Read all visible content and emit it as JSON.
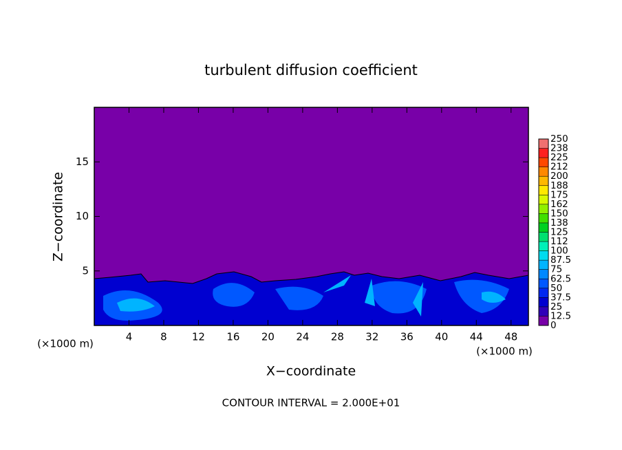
{
  "chart_data": {
    "type": "contour",
    "title": "turbulent diffusion coefficient",
    "x_label": "X−coordinate",
    "y_label": "Z−coordinate",
    "x_unit_left": "(×1000 m)",
    "x_unit_right": "(×1000 m)",
    "footnote": "CONTOUR INTERVAL = 2.000E+01",
    "xlim": [
      0,
      50
    ],
    "xticks": [
      4,
      8,
      12,
      16,
      20,
      24,
      28,
      32,
      36,
      40,
      44,
      48
    ],
    "ylim": [
      0,
      20
    ],
    "yticks": [
      5,
      10,
      15
    ],
    "colorbar": {
      "ticks": [
        0,
        12.5,
        25,
        37.5,
        50,
        62.5,
        75,
        87.5,
        100,
        {
          "value": 112.5,
          "label": "112"
        },
        125,
        {
          "value": 137.5,
          "label": "138"
        },
        150,
        {
          "value": 162.5,
          "label": "162"
        },
        175,
        {
          "value": 187.5,
          "label": "188"
        },
        200,
        {
          "value": 212.5,
          "label": "212"
        },
        225,
        {
          "value": 237.5,
          "label": "238"
        },
        250
      ],
      "colors": [
        "#7800a8",
        "#3000b8",
        "#0000d0",
        "#0028f0",
        "#0058ff",
        "#0088ff",
        "#00b4ff",
        "#00dcf0",
        "#00f0b8",
        "#00e070",
        "#00d020",
        "#40e000",
        "#90f000",
        "#d8f800",
        "#ffe800",
        "#ffb800",
        "#ff8800",
        "#ff4800",
        "#ff2020",
        "#f07070"
      ]
    }
  }
}
